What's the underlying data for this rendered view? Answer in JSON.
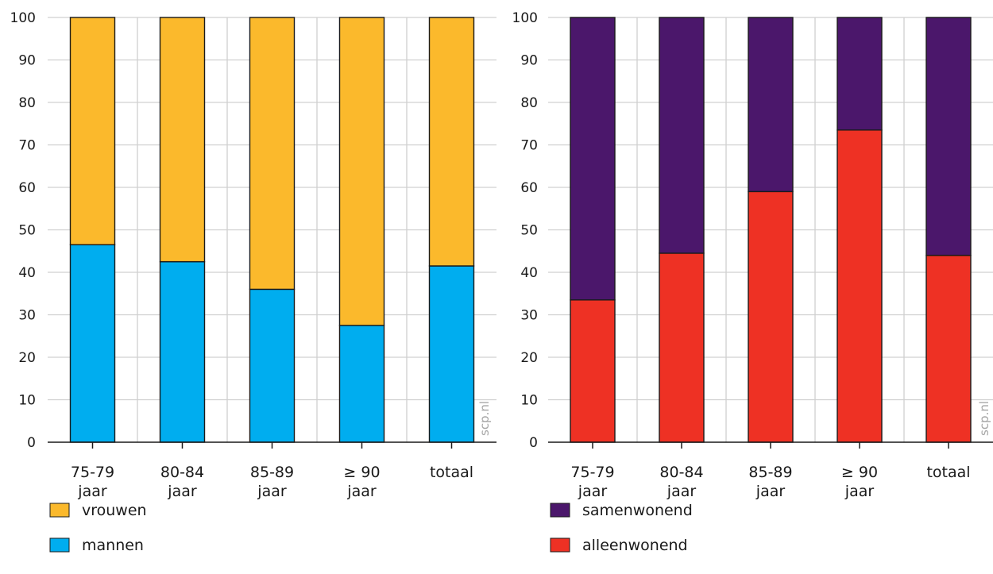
{
  "watermark": "scp.nl",
  "chart_data": [
    {
      "type": "bar",
      "stacked": true,
      "categories": [
        [
          "75-79",
          "jaar"
        ],
        [
          "80-84",
          "jaar"
        ],
        [
          "85-89",
          "jaar"
        ],
        [
          "≥ 90",
          "jaar"
        ],
        [
          "totaal"
        ]
      ],
      "ylim": [
        0,
        100
      ],
      "yticks": [
        0,
        10,
        20,
        30,
        40,
        50,
        60,
        70,
        80,
        90,
        100
      ],
      "grid": true,
      "legend_position": "bottom-left",
      "series": [
        {
          "name": "mannen",
          "color": "#00adef",
          "values": [
            46.5,
            42.5,
            36,
            27.5,
            41.5
          ]
        },
        {
          "name": "vrouwen",
          "color": "#fbb92c",
          "values": [
            53.5,
            57.5,
            64,
            72.5,
            58.5
          ]
        }
      ]
    },
    {
      "type": "bar",
      "stacked": true,
      "categories": [
        [
          "75-79",
          "jaar"
        ],
        [
          "80-84",
          "jaar"
        ],
        [
          "85-89",
          "jaar"
        ],
        [
          "≥ 90",
          "jaar"
        ],
        [
          "totaal"
        ]
      ],
      "ylim": [
        0,
        100
      ],
      "yticks": [
        0,
        10,
        20,
        30,
        40,
        50,
        60,
        70,
        80,
        90,
        100
      ],
      "grid": true,
      "legend_position": "bottom-left",
      "series": [
        {
          "name": "alleenwonend",
          "color": "#ee3124",
          "values": [
            33.5,
            44.5,
            59,
            73.5,
            44
          ]
        },
        {
          "name": "samenwonend",
          "color": "#4b176b",
          "values": [
            66.5,
            55.5,
            41,
            26.5,
            56
          ]
        }
      ]
    }
  ]
}
